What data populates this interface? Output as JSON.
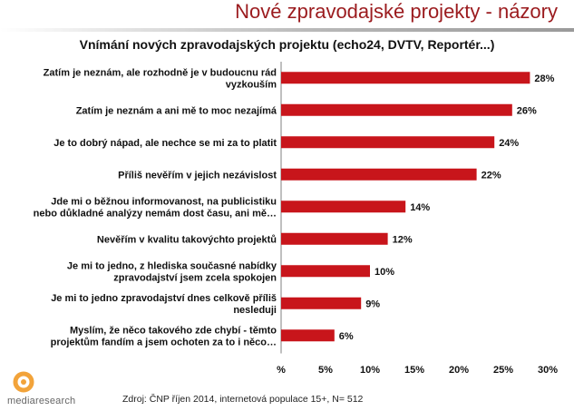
{
  "header": {
    "title": "Nové zpravodajské projekty - názory"
  },
  "colors": {
    "bar": "#c8151b",
    "title_accent": "#9b1b1e"
  },
  "chart_data": {
    "type": "bar",
    "orientation": "horizontal",
    "title": "Vnímání nových zpravodajských projektu (echo24, DVTV, Reportér...)",
    "categories": [
      [
        "Zatím je neznám, ale rozhodně je v budoucnu rád",
        "vyzkouším"
      ],
      [
        "Zatím je neznám a ani mě to moc nezajímá"
      ],
      [
        "Je to dobrý nápad, ale nechce se mi za to platit"
      ],
      [
        "Příliš nevěřím v jejich nezávislost"
      ],
      [
        "Jde mi o běžnou informovanost, na publicistiku",
        "nebo důkladné analýzy nemám dost času, ani mě…"
      ],
      [
        "Nevěřím v kvalitu takovýchto projektů"
      ],
      [
        "Je mi to jedno, z hlediska současné nabídky",
        "zpravodajství jsem zcela spokojen"
      ],
      [
        "Je mi to jedno zpravodajství dnes celkově příliš",
        "nesleduji"
      ],
      [
        "Myslím, že něco takového zde chybí - těmto",
        "projektům fandím a jsem ochoten za to i něco…"
      ]
    ],
    "values": [
      28,
      26,
      24,
      22,
      14,
      12,
      10,
      9,
      6
    ],
    "data_labels": [
      "28%",
      "26%",
      "24%",
      "22%",
      "14%",
      "12%",
      "10%",
      "9%",
      "6%"
    ],
    "xticks": [
      0,
      5,
      10,
      15,
      20,
      25,
      30
    ],
    "xtick_labels": [
      "%",
      "5%",
      "10%",
      "15%",
      "20%",
      "25%",
      "30%"
    ],
    "xlim": [
      0,
      30
    ],
    "grid": false,
    "legend": "none"
  },
  "footer": {
    "source": "Zdroj: ČNP říjen 2014, internetová populace 15+, N= 512",
    "logo_text": "mediaresearch"
  }
}
